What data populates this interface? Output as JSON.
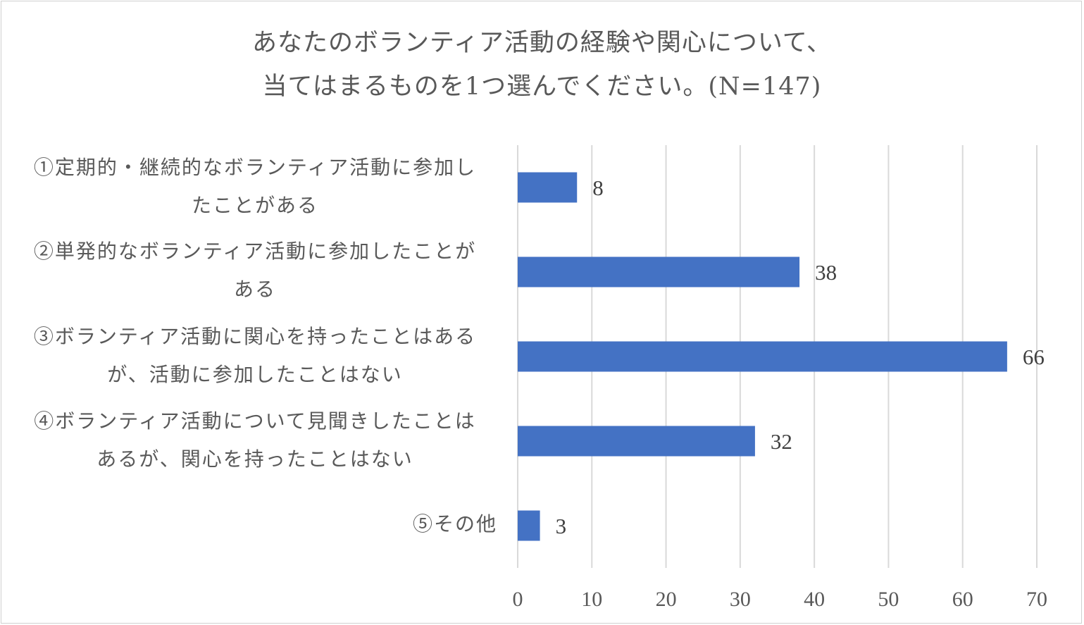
{
  "chart_data": {
    "type": "bar",
    "orientation": "horizontal",
    "title_lines": [
      "あなたのボランティア活動の経験や関心について、",
      "当てはまるものを1つ選んでください。(N=147)"
    ],
    "categories": [
      {
        "lines": [
          "①定期的・継続的なボランティア活動に参加し",
          "たことがある"
        ]
      },
      {
        "lines": [
          "②単発的なボランティア活動に参加したことが",
          "ある"
        ]
      },
      {
        "lines": [
          "③ボランティア活動に関心を持ったことはある",
          "が、活動に参加したことはない"
        ]
      },
      {
        "lines": [
          "④ボランティア活動について見聞きしたことは",
          "あるが、関心を持ったことはない"
        ]
      },
      {
        "lines": [
          "⑤その他"
        ]
      }
    ],
    "values": [
      8,
      38,
      66,
      32,
      3
    ],
    "xlim": [
      0,
      70
    ],
    "xticks": [
      "0",
      "10",
      "20",
      "30",
      "40",
      "50",
      "60",
      "70"
    ],
    "grid": true,
    "data_labels": true,
    "colors": {
      "bar": "#4472C4",
      "grid": "#d9d9d9",
      "text": "#595959",
      "value_label": "#404040"
    }
  }
}
